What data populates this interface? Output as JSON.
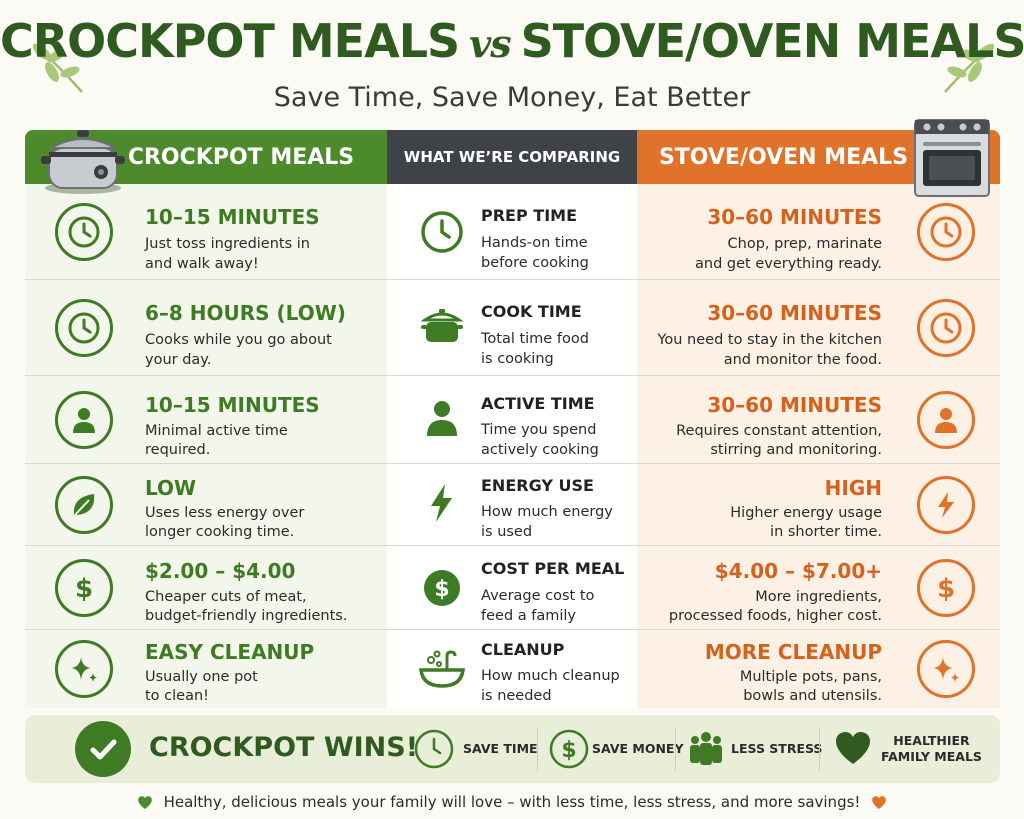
{
  "header": {
    "title_left": "CROCKPOT MEALS",
    "title_vs": "vs",
    "title_right": "STOVE/OVEN MEALS",
    "subtitle": "Save Time, Save Money, Eat Better"
  },
  "columns": {
    "left": "CROCKPOT MEALS",
    "middle": "WHAT WE’RE COMPARING",
    "right": "STOVE/OVEN MEALS"
  },
  "rows": [
    {
      "left_icon": "clock-icon",
      "left_value": "10–15 MINUTES",
      "left_desc": [
        "Just toss ingredients in",
        "and walk away!"
      ],
      "mid_icon": "clock-icon",
      "mid_label": "PREP TIME",
      "mid_desc": [
        "Hands-on time",
        "before cooking"
      ],
      "right_value": "30–60 MINUTES",
      "right_desc": [
        "Chop, prep, marinate",
        "and get everything ready."
      ],
      "right_icon": "clock-icon"
    },
    {
      "left_icon": "clock-icon",
      "left_value": "6–8 HOURS (LOW)",
      "left_desc": [
        "Cooks while you go about",
        "your day."
      ],
      "mid_icon": "pot-icon",
      "mid_label": "COOK TIME",
      "mid_desc": [
        "Total time food",
        "is cooking"
      ],
      "right_value": "30–60 MINUTES",
      "right_desc": [
        "You need to stay in the kitchen",
        "and monitor the food."
      ],
      "right_icon": "clock-icon"
    },
    {
      "left_icon": "person-icon",
      "left_value": "10–15 MINUTES",
      "left_desc": [
        "Minimal active time",
        "required."
      ],
      "mid_icon": "person-icon",
      "mid_label": "ACTIVE TIME",
      "mid_desc": [
        "Time you spend",
        "actively cooking"
      ],
      "right_value": "30–60 MINUTES",
      "right_desc": [
        "Requires constant attention,",
        "stirring and monitoring."
      ],
      "right_icon": "person-icon"
    },
    {
      "left_icon": "leaf-icon",
      "left_value": "LOW",
      "left_desc": [
        "Uses less energy over",
        "longer cooking time."
      ],
      "mid_icon": "lightning-icon",
      "mid_label": "ENERGY USE",
      "mid_desc": [
        "How much energy",
        "is used"
      ],
      "right_value": "HIGH",
      "right_desc": [
        "Higher energy usage",
        "in shorter time."
      ],
      "right_icon": "lightning-icon"
    },
    {
      "left_icon": "dollar-icon",
      "left_value": "$2.00 – $4.00",
      "left_desc": [
        "Cheaper cuts of meat,",
        "budget-friendly ingredients."
      ],
      "mid_icon": "dollar-icon",
      "mid_label": "COST PER MEAL",
      "mid_desc": [
        "Average cost to",
        "feed a family"
      ],
      "right_value": "$4.00 – $7.00+",
      "right_desc": [
        "More ingredients,",
        "processed foods, higher cost."
      ],
      "right_icon": "dollar-icon"
    },
    {
      "left_icon": "sparkle-icon",
      "left_value": "EASY CLEANUP",
      "left_desc": [
        "Usually one pot",
        "to clean!"
      ],
      "mid_icon": "sink-icon",
      "mid_label": "CLEANUP",
      "mid_desc": [
        "How much cleanup",
        "is needed"
      ],
      "right_value": "MORE CLEANUP",
      "right_desc": [
        "Multiple pots, pans,",
        "bowls and utensils."
      ],
      "right_icon": "sparkle-icon"
    }
  ],
  "wins": {
    "title": "CROCKPOT WINS!",
    "perks": [
      {
        "icon": "clock-icon",
        "label": "SAVE TIME"
      },
      {
        "icon": "dollar-icon",
        "label": "SAVE MONEY"
      },
      {
        "icon": "family-icon",
        "label": "LESS STRESS"
      },
      {
        "icon": "heart-icon",
        "label_line1": "HEALTHIER",
        "label_line2": "FAMILY MEALS"
      }
    ]
  },
  "footer": "Healthy, delicious meals your family will love – with less time, less stress, and more savings!",
  "colors": {
    "green": "#3f7a24",
    "dark_green": "#2f5a20",
    "orange": "#e0722a",
    "charcoal": "#3f4347"
  }
}
